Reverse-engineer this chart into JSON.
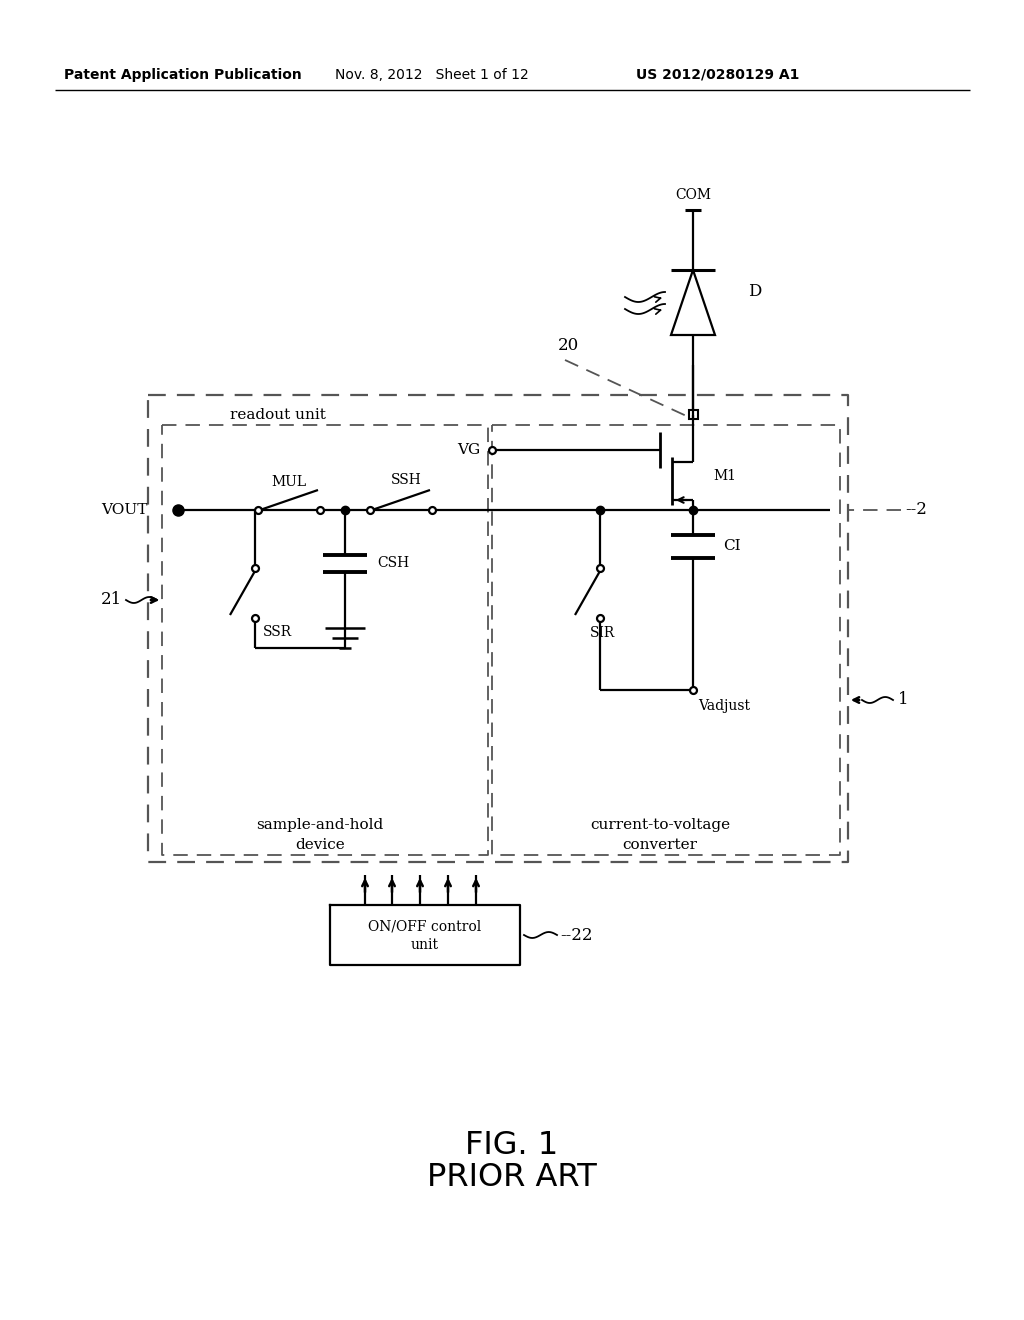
{
  "header_left": "Patent Application Publication",
  "header_mid": "Nov. 8, 2012   Sheet 1 of 12",
  "header_right": "US 2012/0280129 A1",
  "fig_label": "FIG. 1",
  "fig_sublabel": "PRIOR ART",
  "bg_color": "#ffffff"
}
